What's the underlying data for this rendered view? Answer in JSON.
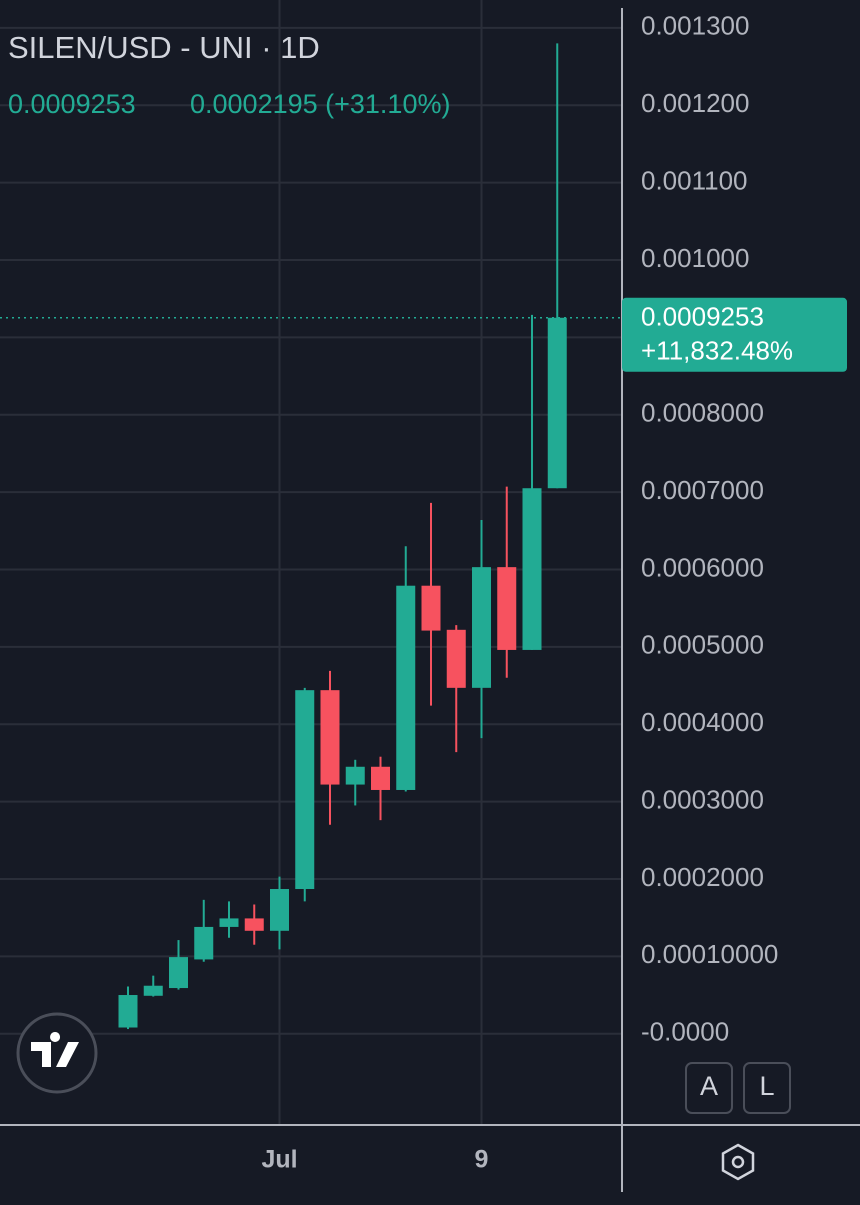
{
  "chart_data": {
    "type": "candlestick",
    "title": "SILEN/USD - UNI · 1D",
    "header_values": [
      "0.0009253",
      "0.0002195 (+31.10%)"
    ],
    "price_tag": {
      "price": "0.0009253",
      "change": "+11,832.48%"
    },
    "buttons": [
      "A",
      "L"
    ],
    "categories": [
      null,
      null,
      null,
      null,
      null,
      null,
      "Jul",
      null,
      null,
      null,
      null,
      null,
      null,
      null,
      "9",
      null,
      null,
      null
    ],
    "open": [
      8e-06,
      4.9e-05,
      5.9e-05,
      9.6e-05,
      0.000138,
      0.000149,
      0.000133,
      0.000187,
      0.000444,
      0.000322,
      0.000345,
      0.000315,
      0.000579,
      0.000522,
      0.000447,
      0.000603,
      0.000496,
      0.000705
    ],
    "high": [
      6.1e-05,
      7.5e-05,
      0.000121,
      0.000173,
      0.000171,
      0.000167,
      0.000203,
      0.000447,
      0.000469,
      0.000354,
      0.000358,
      0.00063,
      0.000686,
      0.000528,
      0.000664,
      0.000707,
      0.000929,
      0.00128
    ],
    "low": [
      6e-06,
      4.8e-05,
      5.7e-05,
      9.3e-05,
      0.000124,
      0.000115,
      0.000109,
      0.000171,
      0.00027,
      0.000295,
      0.000276,
      0.000313,
      0.000424,
      0.000364,
      0.000382,
      0.00046,
      0.000496,
      0.000705
    ],
    "close": [
      5e-05,
      6.2e-05,
      9.9e-05,
      0.000138,
      0.000149,
      0.000133,
      0.000187,
      0.000444,
      0.000322,
      0.000345,
      0.000315,
      0.000579,
      0.000521,
      0.000447,
      0.000603,
      0.000496,
      0.000705,
      0.0009253
    ],
    "up_color": "#22ab94",
    "down_color": "#f7525f",
    "ylim": [
      -0.000118,
      0.001336
    ],
    "yticks": [
      {
        "value": 0.0013,
        "label": "0.001300"
      },
      {
        "value": 0.0012,
        "label": "0.001200"
      },
      {
        "value": 0.0011,
        "label": "0.001100"
      },
      {
        "value": 0.001,
        "label": "0.001000"
      },
      {
        "value": 0.0009,
        "label": null
      },
      {
        "value": 0.0008,
        "label": "0.0008000"
      },
      {
        "value": 0.0007,
        "label": "0.0007000"
      },
      {
        "value": 0.0006,
        "label": "0.0006000"
      },
      {
        "value": 0.0005,
        "label": "0.0005000"
      },
      {
        "value": 0.0004,
        "label": "0.0004000"
      },
      {
        "value": 0.0003,
        "label": "0.0003000"
      },
      {
        "value": 0.0002,
        "label": "0.0002000"
      },
      {
        "value": 0.0001,
        "label": "0.00010000"
      },
      {
        "value": 0,
        "label": "-0.0000"
      }
    ],
    "grid": true
  }
}
